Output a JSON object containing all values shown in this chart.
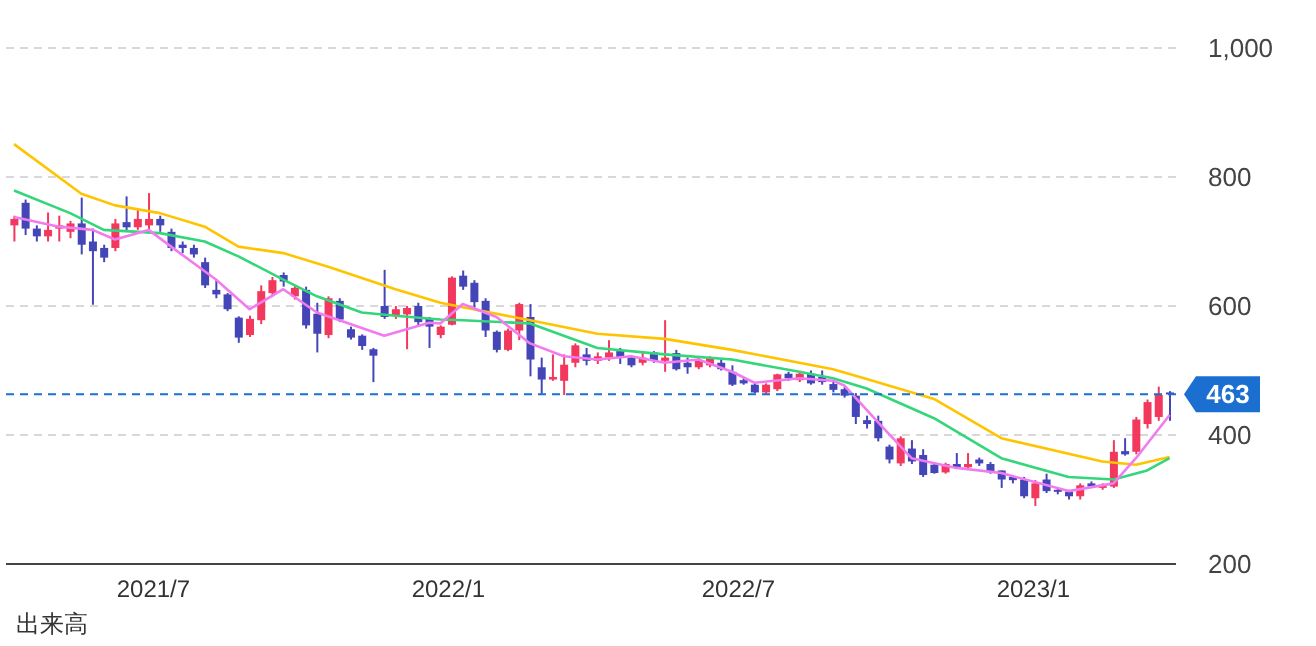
{
  "chart_data": {
    "type": "candlestick",
    "x": [
      "2021-04-05",
      "2021-04-12",
      "2021-04-19",
      "2021-04-26",
      "2021-05-03",
      "2021-05-10",
      "2021-05-17",
      "2021-05-24",
      "2021-05-31",
      "2021-06-07",
      "2021-06-14",
      "2021-06-21",
      "2021-06-28",
      "2021-07-05",
      "2021-07-12",
      "2021-07-19",
      "2021-07-26",
      "2021-08-02",
      "2021-08-09",
      "2021-08-16",
      "2021-08-23",
      "2021-08-30",
      "2021-09-06",
      "2021-09-13",
      "2021-09-20",
      "2021-09-27",
      "2021-10-04",
      "2021-10-11",
      "2021-10-18",
      "2021-10-25",
      "2021-11-01",
      "2021-11-08",
      "2021-11-15",
      "2021-11-22",
      "2021-11-29",
      "2021-12-06",
      "2021-12-13",
      "2021-12-20",
      "2021-12-27",
      "2022-01-03",
      "2022-01-10",
      "2022-01-17",
      "2022-01-24",
      "2022-01-31",
      "2022-02-07",
      "2022-02-14",
      "2022-02-21",
      "2022-02-28",
      "2022-03-07",
      "2022-03-14",
      "2022-03-21",
      "2022-03-28",
      "2022-04-04",
      "2022-04-11",
      "2022-04-18",
      "2022-04-25",
      "2022-05-02",
      "2022-05-09",
      "2022-05-16",
      "2022-05-23",
      "2022-05-30",
      "2022-06-06",
      "2022-06-13",
      "2022-06-20",
      "2022-06-27",
      "2022-07-04",
      "2022-07-11",
      "2022-07-18",
      "2022-07-25",
      "2022-08-01",
      "2022-08-08",
      "2022-08-15",
      "2022-08-22",
      "2022-08-29",
      "2022-09-05",
      "2022-09-12",
      "2022-09-19",
      "2022-09-26",
      "2022-10-03",
      "2022-10-10",
      "2022-10-17",
      "2022-10-24",
      "2022-10-31",
      "2022-11-07",
      "2022-11-14",
      "2022-11-21",
      "2022-11-28",
      "2022-12-05",
      "2022-12-12",
      "2022-12-19",
      "2022-12-26",
      "2023-01-02",
      "2023-01-09",
      "2023-01-16",
      "2023-01-23",
      "2023-01-30",
      "2023-02-06",
      "2023-02-13",
      "2023-02-20",
      "2023-02-27",
      "2023-03-06",
      "2023-03-13",
      "2023-03-20",
      "2023-03-27"
    ],
    "ohlc": [
      [
        725,
        740,
        700,
        735
      ],
      [
        760,
        765,
        710,
        720
      ],
      [
        720,
        725,
        700,
        708
      ],
      [
        708,
        745,
        700,
        718
      ],
      [
        720,
        740,
        700,
        725
      ],
      [
        715,
        732,
        705,
        728
      ],
      [
        728,
        768,
        680,
        695
      ],
      [
        700,
        720,
        602,
        685
      ],
      [
        690,
        695,
        668,
        675
      ],
      [
        690,
        735,
        685,
        728
      ],
      [
        730,
        770,
        715,
        722
      ],
      [
        722,
        750,
        718,
        735
      ],
      [
        725,
        775,
        715,
        735
      ],
      [
        735,
        740,
        715,
        725
      ],
      [
        715,
        720,
        685,
        690
      ],
      [
        695,
        700,
        682,
        690
      ],
      [
        690,
        695,
        675,
        680
      ],
      [
        668,
        675,
        628,
        632
      ],
      [
        625,
        640,
        612,
        618
      ],
      [
        618,
        620,
        592,
        595
      ],
      [
        582,
        584,
        543,
        551
      ],
      [
        555,
        585,
        552,
        580
      ],
      [
        578,
        632,
        572,
        623
      ],
      [
        620,
        645,
        615,
        640
      ],
      [
        648,
        652,
        630,
        638
      ],
      [
        615,
        632,
        610,
        628
      ],
      [
        625,
        630,
        565,
        570
      ],
      [
        588,
        605,
        528,
        557
      ],
      [
        555,
        615,
        550,
        612
      ],
      [
        608,
        612,
        575,
        579
      ],
      [
        564,
        568,
        548,
        551
      ],
      [
        554,
        556,
        532,
        538
      ],
      [
        533,
        535,
        482,
        523
      ],
      [
        600,
        656,
        580,
        583
      ],
      [
        585,
        600,
        580,
        595
      ],
      [
        587,
        600,
        533,
        597
      ],
      [
        600,
        605,
        568,
        575
      ],
      [
        580,
        583,
        535,
        568
      ],
      [
        555,
        570,
        550,
        568
      ],
      [
        571,
        646,
        570,
        644
      ],
      [
        647,
        655,
        625,
        630
      ],
      [
        636,
        640,
        595,
        606
      ],
      [
        608,
        612,
        552,
        562
      ],
      [
        560,
        562,
        528,
        532
      ],
      [
        532,
        565,
        530,
        562
      ],
      [
        562,
        605,
        547,
        603
      ],
      [
        583,
        603,
        491,
        517
      ],
      [
        505,
        520,
        464,
        486
      ],
      [
        486,
        525,
        484,
        490
      ],
      [
        484,
        525,
        462,
        509
      ],
      [
        512,
        542,
        505,
        539
      ],
      [
        525,
        535,
        508,
        515
      ],
      [
        515,
        528,
        510,
        522
      ],
      [
        520,
        547,
        515,
        528
      ],
      [
        530,
        535,
        510,
        520
      ],
      [
        520,
        522,
        505,
        508
      ],
      [
        512,
        528,
        508,
        520
      ],
      [
        528,
        530,
        512,
        515
      ],
      [
        515,
        578,
        498,
        520
      ],
      [
        527,
        532,
        500,
        502
      ],
      [
        512,
        520,
        495,
        505
      ],
      [
        505,
        520,
        502,
        515
      ],
      [
        508,
        522,
        505,
        520
      ],
      [
        512,
        518,
        500,
        502
      ],
      [
        498,
        508,
        476,
        478
      ],
      [
        485,
        488,
        478,
        480
      ],
      [
        478,
        482,
        465,
        466
      ],
      [
        466,
        480,
        464,
        478
      ],
      [
        471,
        495,
        468,
        494
      ],
      [
        495,
        498,
        484,
        488
      ],
      [
        485,
        498,
        482,
        495
      ],
      [
        495,
        500,
        478,
        480
      ],
      [
        490,
        500,
        478,
        482
      ],
      [
        479,
        485,
        466,
        470
      ],
      [
        471,
        475,
        458,
        461
      ],
      [
        461,
        465,
        417,
        428
      ],
      [
        423,
        430,
        410,
        417
      ],
      [
        422,
        430,
        390,
        395
      ],
      [
        382,
        385,
        356,
        362
      ],
      [
        356,
        398,
        352,
        395
      ],
      [
        379,
        392,
        355,
        359
      ],
      [
        369,
        378,
        335,
        338
      ],
      [
        354,
        355,
        340,
        341
      ],
      [
        342,
        357,
        340,
        355
      ],
      [
        355,
        372,
        348,
        350
      ],
      [
        350,
        372,
        348,
        355
      ],
      [
        362,
        365,
        352,
        356
      ],
      [
        355,
        358,
        340,
        342
      ],
      [
        345,
        345,
        318,
        331
      ],
      [
        335,
        338,
        325,
        330
      ],
      [
        331,
        335,
        302,
        305
      ],
      [
        302,
        330,
        290,
        325
      ],
      [
        331,
        340,
        310,
        313
      ],
      [
        315,
        318,
        308,
        312
      ],
      [
        312,
        315,
        300,
        305
      ],
      [
        305,
        325,
        300,
        322
      ],
      [
        325,
        328,
        318,
        320
      ],
      [
        318,
        325,
        315,
        322
      ],
      [
        320,
        392,
        318,
        374
      ],
      [
        375,
        395,
        368,
        370
      ],
      [
        374,
        428,
        370,
        424
      ],
      [
        417,
        455,
        410,
        451
      ],
      [
        428,
        475,
        422,
        462
      ],
      [
        466,
        468,
        422,
        463
      ]
    ],
    "colors": [
      "#f2385c",
      "#4446b8",
      "#4446b8",
      "#f2385c",
      "#f2385c",
      "#f2385c",
      "#4446b8",
      "#4446b8",
      "#4446b8",
      "#f2385c",
      "#4446b8",
      "#f2385c",
      "#f2385c",
      "#4446b8",
      "#4446b8",
      "#4446b8",
      "#4446b8",
      "#4446b8",
      "#4446b8",
      "#4446b8",
      "#4446b8",
      "#f2385c",
      "#f2385c",
      "#f2385c",
      "#4446b8",
      "#f2385c",
      "#4446b8",
      "#4446b8",
      "#f2385c",
      "#4446b8",
      "#4446b8",
      "#4446b8",
      "#4446b8",
      "#4446b8",
      "#f2385c",
      "#f2385c",
      "#4446b8",
      "#4446b8",
      "#f2385c",
      "#f2385c",
      "#4446b8",
      "#4446b8",
      "#4446b8",
      "#4446b8",
      "#f2385c",
      "#f2385c",
      "#4446b8",
      "#4446b8",
      "#f2385c",
      "#f2385c",
      "#f2385c",
      "#4446b8",
      "#f2385c",
      "#f2385c",
      "#4446b8",
      "#4446b8",
      "#f2385c",
      "#4446b8",
      "#f2385c",
      "#4446b8",
      "#4446b8",
      "#f2385c",
      "#f2385c",
      "#4446b8",
      "#4446b8",
      "#4446b8",
      "#4446b8",
      "#f2385c",
      "#f2385c",
      "#4446b8",
      "#f2385c",
      "#4446b8",
      "#4446b8",
      "#4446b8",
      "#4446b8",
      "#4446b8",
      "#4446b8",
      "#4446b8",
      "#4446b8",
      "#f2385c",
      "#4446b8",
      "#4446b8",
      "#4446b8",
      "#f2385c",
      "#4446b8",
      "#f2385c",
      "#4446b8",
      "#4446b8",
      "#4446b8",
      "#4446b8",
      "#4446b8",
      "#f2385c",
      "#4446b8",
      "#4446b8",
      "#4446b8",
      "#f2385c",
      "#4446b8",
      "#f2385c",
      "#f2385c",
      "#4446b8",
      "#f2385c",
      "#f2385c",
      "#f2385c",
      "#4446b8"
    ],
    "series": [
      {
        "type": "line",
        "color": "#ffc400",
        "x": [
          "2021-04-05",
          "2021-05-17",
          "2021-06-07",
          "2021-07-05",
          "2021-08-02",
          "2021-08-23",
          "2021-09-20",
          "2021-10-18",
          "2021-11-29",
          "2021-12-27",
          "2022-01-10",
          "2022-02-21",
          "2022-04-04",
          "2022-05-16",
          "2022-06-27",
          "2022-08-08",
          "2022-08-29",
          "2022-09-19",
          "2022-10-31",
          "2022-12-12",
          "2023-02-13",
          "2023-03-06",
          "2023-03-27"
        ],
        "values": [
          851,
          774,
          756,
          744,
          723,
          692,
          682,
          661,
          626,
          605,
          598,
          578,
          557,
          549,
          532,
          512,
          502,
          487,
          456,
          395,
          359,
          354,
          366
        ]
      },
      {
        "type": "line",
        "color": "#33d67a",
        "x": [
          "2021-04-05",
          "2021-05-10",
          "2021-05-31",
          "2021-07-05",
          "2021-08-02",
          "2021-08-23",
          "2021-09-20",
          "2021-10-11",
          "2021-11-08",
          "2021-11-29",
          "2021-12-27",
          "2022-01-10",
          "2022-02-21",
          "2022-04-04",
          "2022-05-16",
          "2022-06-27",
          "2022-08-08",
          "2022-08-29",
          "2022-09-19",
          "2022-10-31",
          "2022-12-12",
          "2023-01-23",
          "2023-02-20",
          "2023-03-13",
          "2023-03-27"
        ],
        "values": [
          779,
          744,
          718,
          713,
          700,
          677,
          641,
          615,
          590,
          585,
          579,
          578,
          573,
          535,
          525,
          517,
          498,
          488,
          472,
          426,
          364,
          335,
          331,
          345,
          364
        ]
      },
      {
        "type": "line",
        "color": "#f07cf0",
        "x": [
          "2021-04-05",
          "2021-05-03",
          "2021-05-24",
          "2021-06-07",
          "2021-06-28",
          "2021-07-12",
          "2021-08-09",
          "2021-08-30",
          "2021-09-20",
          "2021-10-11",
          "2021-11-22",
          "2021-12-20",
          "2021-12-27",
          "2022-01-10",
          "2022-01-31",
          "2022-02-21",
          "2022-03-14",
          "2022-04-04",
          "2022-04-25",
          "2022-05-16",
          "2022-06-06",
          "2022-06-27",
          "2022-07-11",
          "2022-08-08",
          "2022-08-29",
          "2022-09-05",
          "2022-09-26",
          "2022-10-17",
          "2022-11-14",
          "2022-12-12",
          "2023-01-23",
          "2023-02-20",
          "2023-03-06",
          "2023-03-27"
        ],
        "values": [
          738,
          723,
          718,
          703,
          718,
          692,
          641,
          595,
          626,
          590,
          554,
          574,
          573,
          603,
          583,
          542,
          522,
          517,
          522,
          512,
          517,
          498,
          481,
          488,
          484,
          477,
          420,
          364,
          349,
          341,
          313,
          325,
          364,
          431
        ]
      }
    ],
    "xlim": [
      "2021-03-31",
      "2023-03-31"
    ],
    "xticks": [
      {
        "value": "2021-07-01",
        "label": "2021/7"
      },
      {
        "value": "2022-01-01",
        "label": "2022/1"
      },
      {
        "value": "2022-07-01",
        "label": "2022/7"
      },
      {
        "value": "2023-01-01",
        "label": "2023/1"
      }
    ],
    "ylim": [
      200,
      1000
    ],
    "yticks": [
      200,
      400,
      600,
      800,
      {
        "value": 1000,
        "label": "1,000"
      }
    ],
    "grid": "y",
    "ref_lines": [
      {
        "axis": "y",
        "value": 463,
        "label": "463",
        "color": "#1a6fd0",
        "line_style": "dashed"
      }
    ],
    "annotations": [
      "出来高"
    ]
  }
}
